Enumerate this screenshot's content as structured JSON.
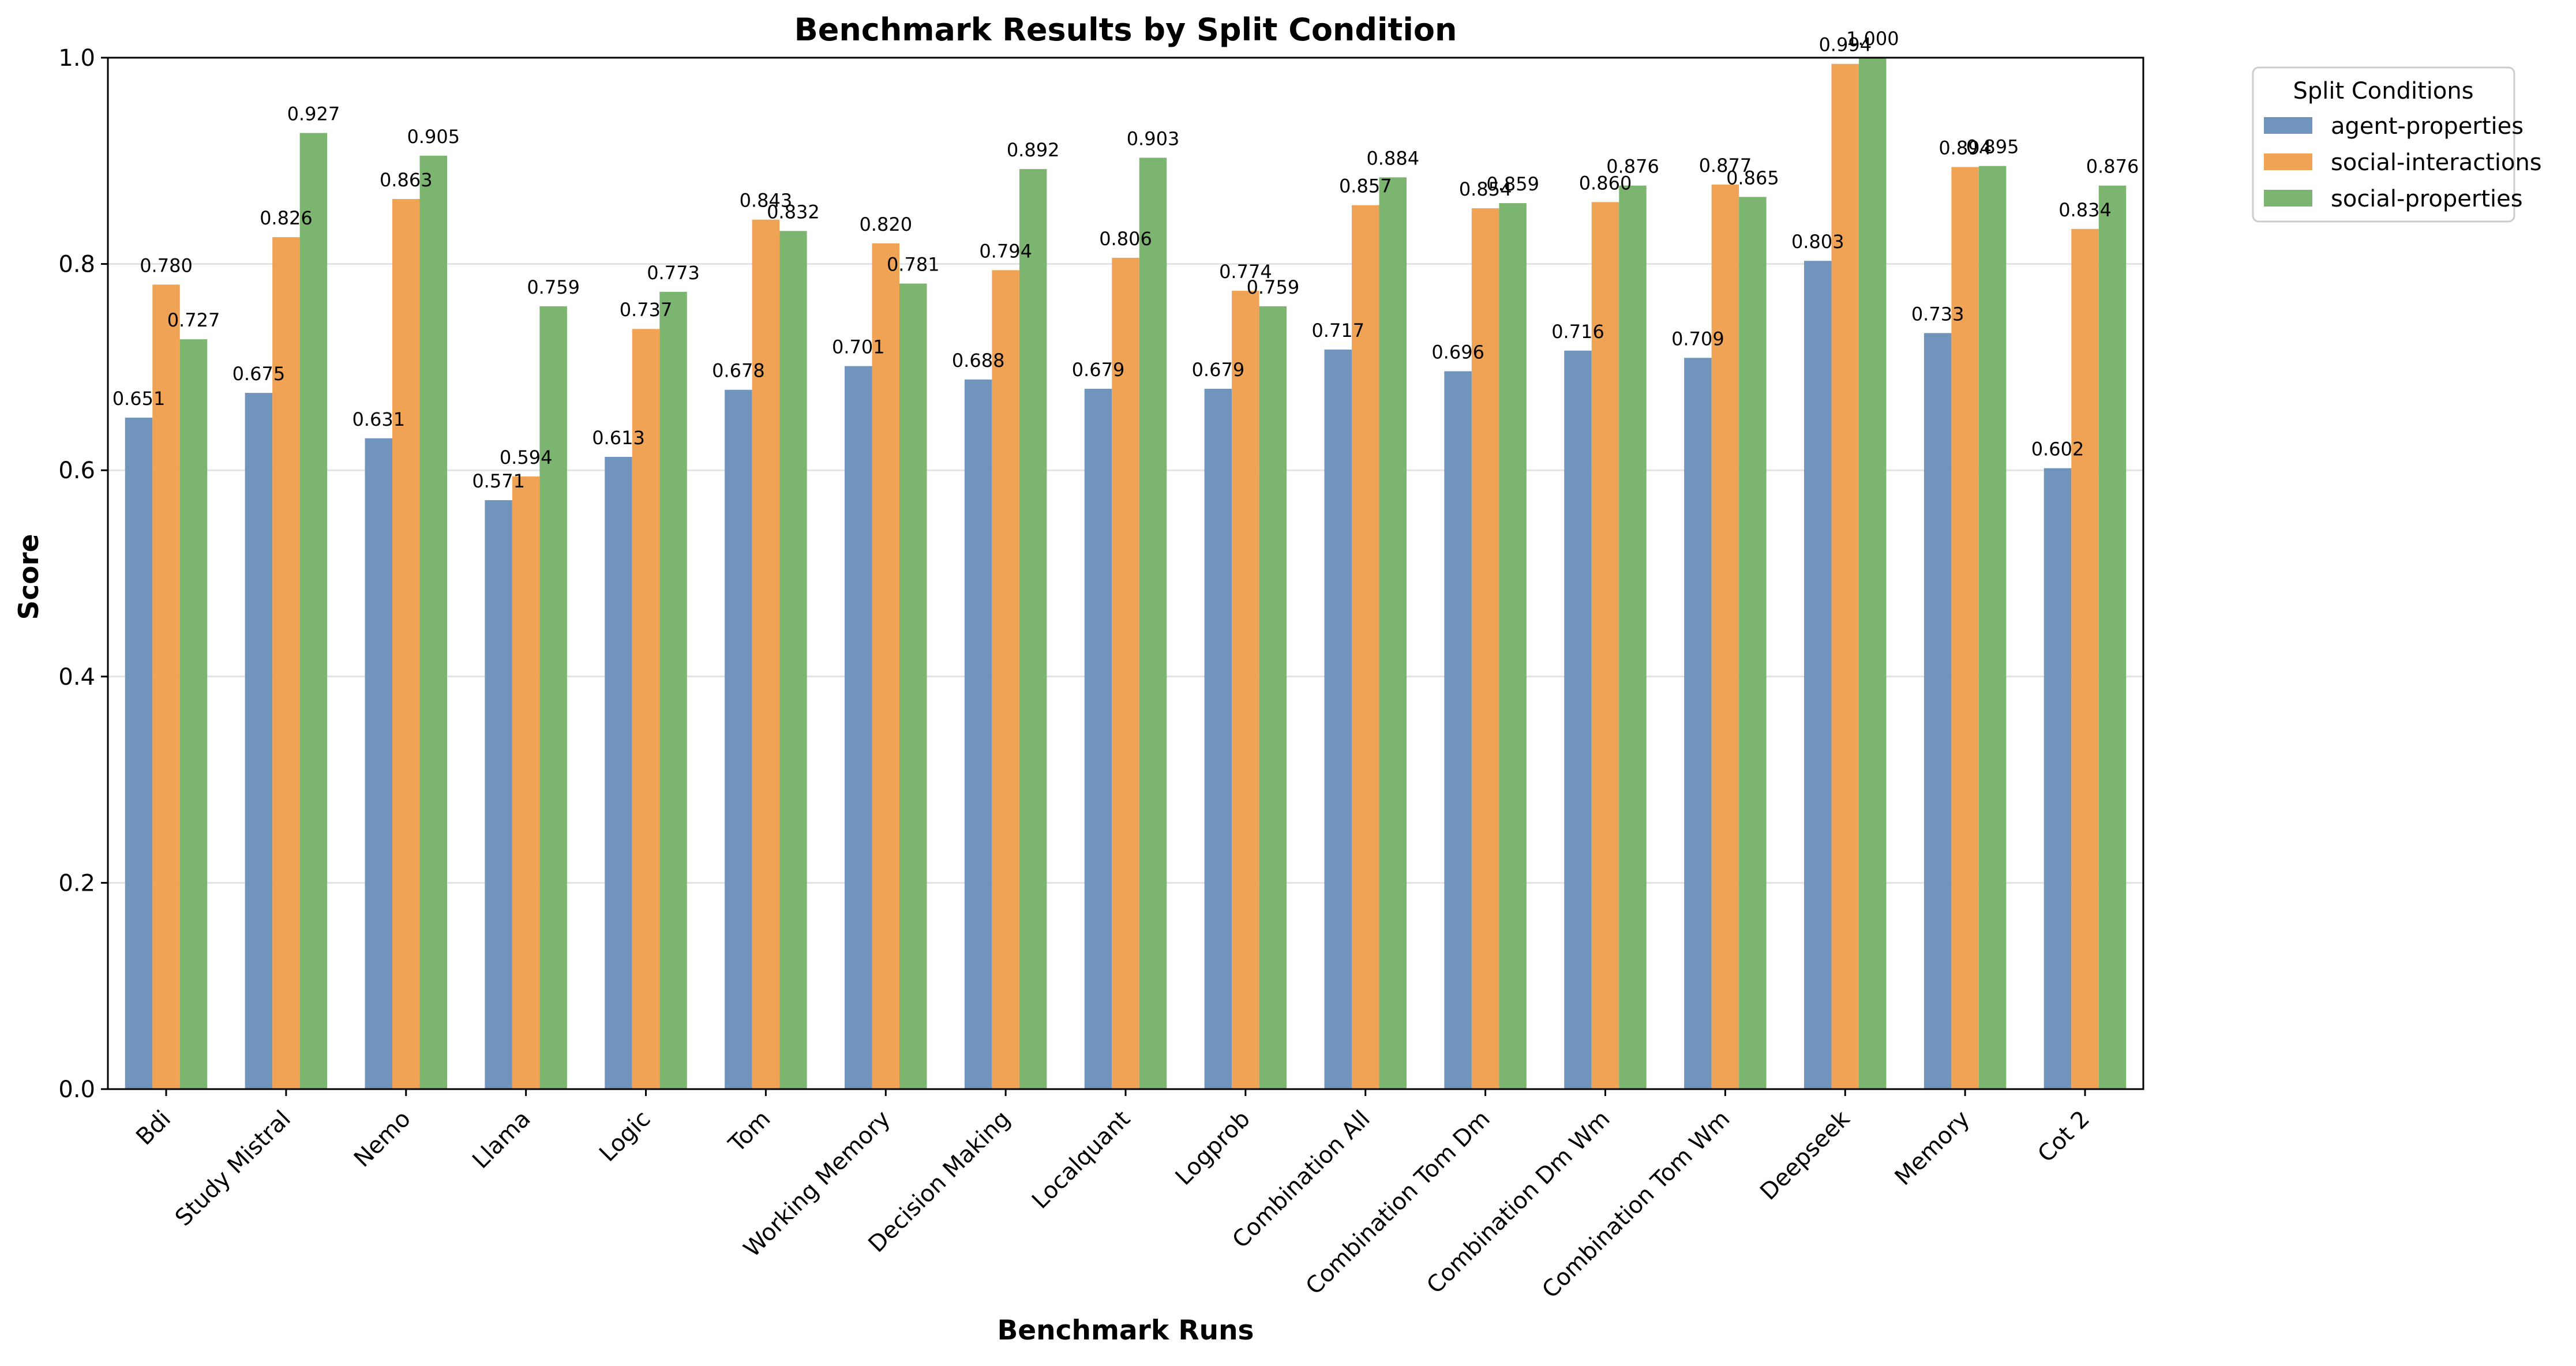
{
  "chart_data": {
    "type": "bar",
    "title": "Benchmark Results by Split Condition",
    "xlabel": "Benchmark Runs",
    "ylabel": "Score",
    "ylim": [
      0,
      1.0
    ],
    "yticks": [
      "0.0",
      "0.2",
      "0.4",
      "0.6",
      "0.8",
      "1.0"
    ],
    "grid": "y",
    "legend": {
      "title": "Split Conditions",
      "placement": "outside-top-right"
    },
    "categories": [
      "Bdi",
      "Study Mistral",
      "Nemo",
      "Llama",
      "Logic",
      "Tom",
      "Working Memory",
      "Decision Making",
      "Localquant",
      "Logprob",
      "Combination All",
      "Combination Tom Dm",
      "Combination Dm Wm",
      "Combination Tom Wm",
      "Deepseek",
      "Memory",
      "Cot 2"
    ],
    "series": [
      {
        "name": "agent-properties",
        "color": "#7094bb",
        "values": [
          0.651,
          0.675,
          0.631,
          0.571,
          0.613,
          0.678,
          0.701,
          0.688,
          0.679,
          0.679,
          0.717,
          0.696,
          0.716,
          0.709,
          0.803,
          0.733,
          0.602
        ],
        "labels": [
          "0.651",
          "0.675",
          "0.631",
          "0.571",
          "0.613",
          "0.678",
          "0.701",
          "0.688",
          "0.679",
          "0.679",
          "0.717",
          "0.696",
          "0.716",
          "0.709",
          "0.803",
          "0.733",
          "0.602"
        ]
      },
      {
        "name": "social-interactions",
        "color": "#f0a354",
        "values": [
          0.78,
          0.826,
          0.863,
          0.594,
          0.737,
          0.843,
          0.82,
          0.794,
          0.806,
          0.774,
          0.857,
          0.854,
          0.86,
          0.877,
          0.994,
          0.894,
          0.834
        ],
        "labels": [
          "0.780",
          "0.826",
          "0.863",
          "0.594",
          "0.737",
          "0.843",
          "0.820",
          "0.794",
          "0.806",
          "0.774",
          "0.857",
          "0.854",
          "0.860",
          "0.877",
          "0.994",
          "0.894",
          "0.834"
        ]
      },
      {
        "name": "social-properties",
        "color": "#7cb56f",
        "values": [
          0.727,
          0.927,
          0.905,
          0.759,
          0.773,
          0.832,
          0.781,
          0.892,
          0.903,
          0.759,
          0.884,
          0.859,
          0.876,
          0.865,
          1.0,
          0.895,
          0.876
        ],
        "labels": [
          "0.727",
          "0.927",
          "0.905",
          "0.759",
          "0.773",
          "0.832",
          "0.781",
          "0.892",
          "0.903",
          "0.759",
          "0.884",
          "0.859",
          "0.876",
          "0.865",
          "1.000",
          "0.895",
          "0.876"
        ]
      }
    ]
  }
}
